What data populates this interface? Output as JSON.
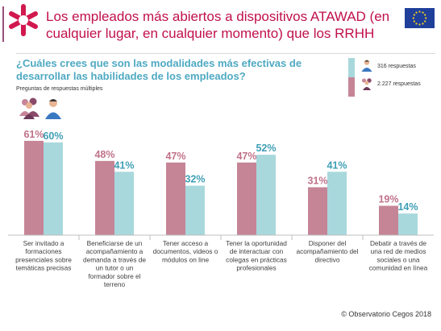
{
  "header": {
    "title": "Los empleados más abiertos a dispositivos ATAWAD (en cualquier lugar, en cualquier momento) que los RRHH"
  },
  "question": "¿Cuáles crees que son las modalidades más efectivas de desarrollar las habilidades de los empleados?",
  "note": "Preguntas de respuestas múltiples",
  "footer": "© Observatorio Cegos 2018",
  "colors": {
    "title": "#c0104a",
    "question": "#4ea9c2",
    "employees": "#c58597",
    "hr": "#a8d8dc"
  },
  "chart_data": {
    "type": "bar",
    "categories": [
      [
        "Ser invitado a",
        "formaciones",
        "presenciales sobre",
        "temáticas precisas"
      ],
      [
        "Beneficiarse de un",
        "acompañamiento a",
        "demanda a través de",
        "un tutor o un",
        "formador sobre el",
        "terreno"
      ],
      [
        "Tener acceso a",
        "documentos, videos o",
        "módulos on line"
      ],
      [
        "Tener la oportunidad",
        "de interactuar con",
        "colegas en prácticas",
        "profesionales"
      ],
      [
        "Disponer del",
        "acompañamiento del",
        "directivo"
      ],
      [
        "Debatir a través de",
        "una red de medios",
        "sociales o una",
        "comunidad en línea"
      ]
    ],
    "series": [
      {
        "name": "2.227 respuestas",
        "color": "#c58597",
        "label_color": "#c0728a",
        "values": [
          61,
          48,
          47,
          47,
          31,
          19
        ]
      },
      {
        "name": "316 respuestas",
        "color": "#a8d8dc",
        "label_color": "#3e9fb6",
        "values": [
          60,
          41,
          32,
          52,
          41,
          14
        ]
      }
    ],
    "value_suffix": "%",
    "ylim": [
      0,
      70
    ],
    "grid": false,
    "legend": "top-right"
  }
}
